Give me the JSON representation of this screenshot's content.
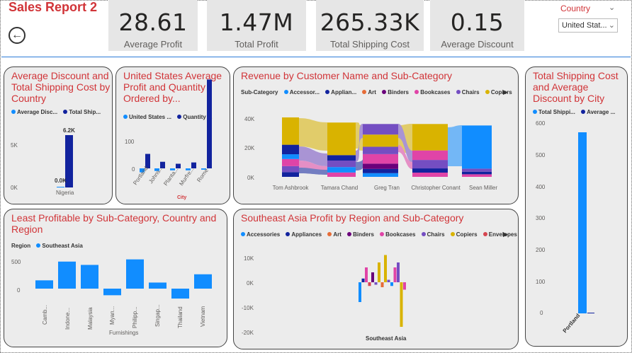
{
  "report": {
    "title": "Sales Report 2",
    "back_icon": "arrow-left-circle-icon"
  },
  "kpis": [
    {
      "value": "28.61",
      "label": "Average Profit"
    },
    {
      "value": "1.47M",
      "label": "Total Profit"
    },
    {
      "value": "265.33K",
      "label": "Total Shipping Cost"
    },
    {
      "value": "0.15",
      "label": "Average Discount"
    }
  ],
  "slicer": {
    "label": "Country",
    "selected": "United Stat..."
  },
  "colors": {
    "accent": "#d13438",
    "blue": "#118dff",
    "navy": "#12239e",
    "orange": "#e66c37",
    "purple": "#6b007b",
    "pink": "#e044a7",
    "violet": "#744ec2",
    "gold": "#d9b300"
  },
  "cards": {
    "disc_ship": {
      "title": "Average Discount and Total Shipping Cost by Country",
      "legend": [
        "Average Disc...",
        "Total Ship..."
      ],
      "y_ticks": [
        "5K",
        "0K"
      ],
      "x_label": "Nigeria",
      "data_labels": [
        "6.2K",
        "0.0K"
      ]
    },
    "us_profit": {
      "title": "United States Average Profit and Quantity Ordered by...",
      "legend": [
        "United States ...",
        "Quantity ..."
      ],
      "y_ticks": [
        "100",
        "0"
      ],
      "x_ticks": [
        "Portland",
        "Johns...",
        "Planta...",
        "Murfre...",
        "Rome"
      ],
      "x_title": "City"
    },
    "revenue": {
      "title": "Revenue by Customer Name and Sub-Category",
      "legend_title": "Sub-Category",
      "legend": [
        "Accessor...",
        "Applian...",
        "Art",
        "Binders",
        "Bookcases",
        "Chairs",
        "Copiers"
      ],
      "y_ticks": [
        "40K",
        "20K",
        "0K"
      ],
      "x_ticks": [
        "Tom Ashbrook",
        "Tamara Chand",
        "Greg Tran",
        "Christopher Conant",
        "Sean Miller"
      ]
    },
    "ship_city": {
      "title": "Total Shipping Cost and Average Discount by City",
      "legend": [
        "Total Shippi...",
        "Average ..."
      ],
      "y_ticks": [
        "600",
        "500",
        "400",
        "300",
        "200",
        "100",
        "0"
      ],
      "x_label": "Portland"
    },
    "least": {
      "title": "Least Profitable by Sub-Category, Country and Region",
      "legend_title": "Region",
      "legend": [
        "Southeast Asia"
      ],
      "y_ticks": [
        "500",
        "0"
      ],
      "x_ticks": [
        "Camb...",
        "Indone...",
        "Malaysia",
        "Myan...",
        "Philipp...",
        "Singap...",
        "Thailand",
        "Vietnam"
      ],
      "x_title": "Furnishings"
    },
    "sea": {
      "title": "Southeast Asia Profit by Region and Sub-Category",
      "legend": [
        "Accessories",
        "Appliances",
        "Art",
        "Binders",
        "Bookcases",
        "Chairs",
        "Copiers",
        "Envelopes"
      ],
      "y_ticks": [
        "10K",
        "0K",
        "-10K",
        "-20K"
      ],
      "x_label": "Southeast Asia"
    }
  },
  "chart_data": [
    {
      "type": "bar",
      "title": "Average Discount and Total Shipping Cost by Country",
      "categories": [
        "Nigeria"
      ],
      "series": [
        {
          "name": "Average Disc...",
          "values": [
            0.0
          ]
        },
        {
          "name": "Total Ship...",
          "values": [
            6200
          ]
        }
      ],
      "ylim": [
        0,
        7000
      ]
    },
    {
      "type": "bar",
      "title": "United States Average Profit and Quantity Ordered by...",
      "categories": [
        "Portland",
        "Johns...",
        "Planta...",
        "Murfre...",
        "Rome"
      ],
      "series": [
        {
          "name": "United States ...",
          "values": [
            -6,
            -4,
            -3,
            -3,
            -2
          ]
        },
        {
          "name": "Quantity ...",
          "values": [
            22,
            10,
            7,
            9,
            135
          ]
        }
      ],
      "ylim": [
        -15,
        150
      ]
    },
    {
      "type": "bar",
      "title": "Revenue by Customer Name and Sub-Category",
      "categories": [
        "Tom Ashbrook",
        "Tamara Chand",
        "Greg Tran",
        "Christopher Conant",
        "Sean Miller"
      ],
      "series": [
        {
          "name": "Revenue",
          "values": [
            40500,
            37000,
            36000,
            36000,
            35000
          ]
        }
      ],
      "ylim": [
        0,
        45000
      ]
    },
    {
      "type": "bar",
      "title": "Total Shipping Cost and Average Discount by City",
      "categories": [
        "Portland"
      ],
      "series": [
        {
          "name": "Total Shippi...",
          "values": [
            575
          ]
        },
        {
          "name": "Average ...",
          "values": [
            1
          ]
        }
      ],
      "ylim": [
        0,
        620
      ]
    },
    {
      "type": "bar",
      "title": "Least Profitable by Sub-Category, Country and Region",
      "categories": [
        "Camb...",
        "Indone...",
        "Malaysia",
        "Myan...",
        "Philipp...",
        "Singap...",
        "Thailand",
        "Vietnam"
      ],
      "series": [
        {
          "name": "Southeast Asia",
          "values": [
            150,
            490,
            430,
            -120,
            530,
            110,
            -180,
            260
          ]
        }
      ],
      "ylim": [
        -300,
        600
      ]
    },
    {
      "type": "bar",
      "title": "Southeast Asia Profit by Region and Sub-Category",
      "categories": [
        "Southeast Asia"
      ],
      "series": [
        {
          "name": "Accessories",
          "values": [
            -8000
          ]
        },
        {
          "name": "Appliances",
          "values": [
            6000
          ]
        },
        {
          "name": "Art",
          "values": [
            1500
          ]
        },
        {
          "name": "Binders",
          "values": [
            4000
          ]
        },
        {
          "name": "Bookcases",
          "values": [
            8000
          ]
        },
        {
          "name": "Chairs",
          "values": [
            11000
          ]
        },
        {
          "name": "Copiers",
          "values": [
            -18000
          ]
        },
        {
          "name": "Envelopes",
          "values": [
            -1000
          ]
        }
      ],
      "ylim": [
        -22000,
        14000
      ]
    }
  ]
}
